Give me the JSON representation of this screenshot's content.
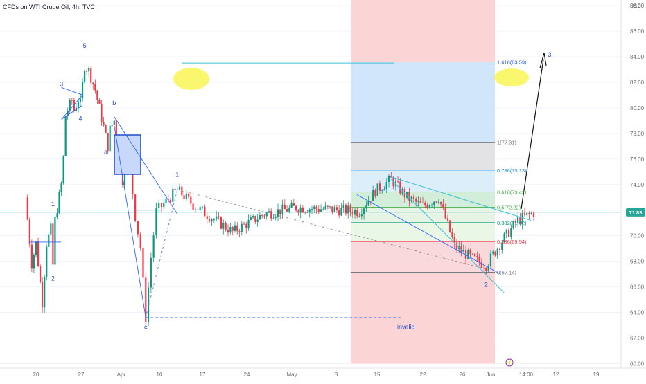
{
  "title": "CFDs on WTI Crude Oil, 4h, TVC",
  "currency": "USD",
  "current_price": "71.83",
  "invalid_label": "invalid",
  "chart_data": {
    "type": "candlestick",
    "title": "CFDs on WTI Crude Oil, 4h, TVC",
    "ylabel": "USD",
    "ylim": [
      59.6,
      89.2
    ],
    "y_ticks": [
      "88.00",
      "86.00",
      "84.00",
      "82.00",
      "80.00",
      "78.00",
      "76.00",
      "74.00",
      "72.00",
      "70.00",
      "68.00",
      "66.00",
      "64.00",
      "62.00",
      "60.00"
    ],
    "x_ticks": [
      "20",
      "27",
      "Apr",
      "10",
      "17",
      "24",
      "May",
      "8",
      "15",
      "22",
      "26",
      "Jun",
      "14:00",
      "12",
      "19"
    ],
    "price_path": [
      {
        "t": "Mar 15",
        "price": 73.0
      },
      {
        "t": "Mar 18",
        "price": 67.8
      },
      {
        "t": "Mar 20",
        "price": 69.4
      },
      {
        "t": "Mar 22",
        "price": 66.3
      },
      {
        "t": "Mar 23",
        "price": 64.8
      },
      {
        "t": "Mar 25",
        "price": 69.4
      },
      {
        "t": "Mar 27",
        "price": 70.5
      },
      {
        "t": "Mar 28",
        "price": 67.7
      },
      {
        "t": "Mar 29",
        "price": 71.2
      },
      {
        "t": "Apr 01",
        "price": 74.0
      },
      {
        "t": "Apr 02",
        "price": 76.1
      },
      {
        "t": "Apr 03",
        "price": 79.4
      },
      {
        "t": "Apr 06",
        "price": 80.6
      },
      {
        "t": "Apr 07",
        "price": 79.8
      },
      {
        "t": "Apr 09",
        "price": 80.7
      },
      {
        "t": "Apr 10",
        "price": 80.3
      },
      {
        "t": "Apr 12",
        "price": 83.3
      },
      {
        "t": "Apr 14",
        "price": 82.9
      },
      {
        "t": "Apr 17",
        "price": 81.4
      },
      {
        "t": "Apr 21",
        "price": 78.5
      },
      {
        "t": "Apr 23",
        "price": 77.0
      },
      {
        "t": "Apr 24",
        "price": 78.3
      },
      {
        "t": "Apr 26",
        "price": 79.0
      },
      {
        "t": "Apr 30",
        "price": 74.3
      },
      {
        "t": "May 01",
        "price": 76.3
      },
      {
        "t": "May 02",
        "price": 75.2
      },
      {
        "t": "May 03",
        "price": 71.5
      },
      {
        "t": "May 04",
        "price": 69.1
      },
      {
        "t": "May 05",
        "price": 63.6
      },
      {
        "t": "May 06",
        "price": 68.3
      },
      {
        "t": "May 07",
        "price": 71.9
      },
      {
        "t": "May 08",
        "price": 72.3
      },
      {
        "t": "May 10",
        "price": 73.6
      },
      {
        "t": "May 12",
        "price": 72.4
      },
      {
        "t": "May 15",
        "price": 70.3
      },
      {
        "t": "May 17",
        "price": 71.7
      },
      {
        "t": "May 19",
        "price": 72.2
      },
      {
        "t": "May 22",
        "price": 72.0
      },
      {
        "t": "May 23",
        "price": 71.9
      },
      {
        "t": "May 24",
        "price": 73.5
      },
      {
        "t": "May 25",
        "price": 74.4
      },
      {
        "t": "May 26",
        "price": 73.0
      },
      {
        "t": "May 27",
        "price": 72.3
      },
      {
        "t": "May 28",
        "price": 73.0
      },
      {
        "t": "May 29",
        "price": 69.2
      },
      {
        "t": "May 30",
        "price": 68.3
      },
      {
        "t": "May 31",
        "price": 67.7
      },
      {
        "t": "Jun 01",
        "price": 69.6
      },
      {
        "t": "Jun 02",
        "price": 71.2
      },
      {
        "t": "Jun 03",
        "price": 71.8
      }
    ],
    "fib_levels": [
      {
        "label": "1.618(83.59)",
        "value": 83.59,
        "color": "#2962ff"
      },
      {
        "label": "1(77.31)",
        "value": 77.31,
        "color": "#787b86"
      },
      {
        "label": "0.786(75.13)",
        "value": 75.13,
        "color": "#2196f3"
      },
      {
        "label": "0.618(73.42)",
        "value": 73.42,
        "color": "#4caf50"
      },
      {
        "label": "0.5(72.22)",
        "value": 72.22,
        "color": "#4caf50"
      },
      {
        "label": "0.382(71.02)",
        "value": 71.02,
        "color": "#089981"
      },
      {
        "label": "0.236(69.54)",
        "value": 69.54,
        "color": "#f23645"
      },
      {
        "label": "0(67.14)",
        "value": 67.14,
        "color": "#787b86"
      }
    ],
    "wave_labels": [
      {
        "text": "1",
        "t": "Mar 28",
        "price": 72.3
      },
      {
        "text": "2",
        "t": "Mar 28",
        "price": 66.5
      },
      {
        "text": "3",
        "t": "Apr 01",
        "price": 81.7
      },
      {
        "text": "4",
        "t": "Apr 10",
        "price": 79.0
      },
      {
        "text": "5",
        "t": "Apr 12",
        "price": 84.7
      },
      {
        "text": "a",
        "t": "Apr 22",
        "price": 76.4
      },
      {
        "text": "b",
        "t": "Apr 26",
        "price": 80.2
      },
      {
        "text": "c",
        "t": "May 05",
        "price": 62.7
      },
      {
        "text": "1",
        "t": "May 10",
        "price": 74.6
      },
      {
        "text": "2",
        "t": "May 31",
        "price": 66.0
      },
      {
        "text": "3",
        "t": "Jun 04",
        "price": 84.0
      }
    ],
    "horizontal_lines": [
      {
        "name": "wave-5-top",
        "price": 83.5
      },
      {
        "name": "current-price",
        "price": 71.83
      }
    ],
    "colors": {
      "up": "#089981",
      "down": "#f23645",
      "wave": "#1f4fc8",
      "highlight": "#f7f20f",
      "current": "#26a69a"
    }
  }
}
